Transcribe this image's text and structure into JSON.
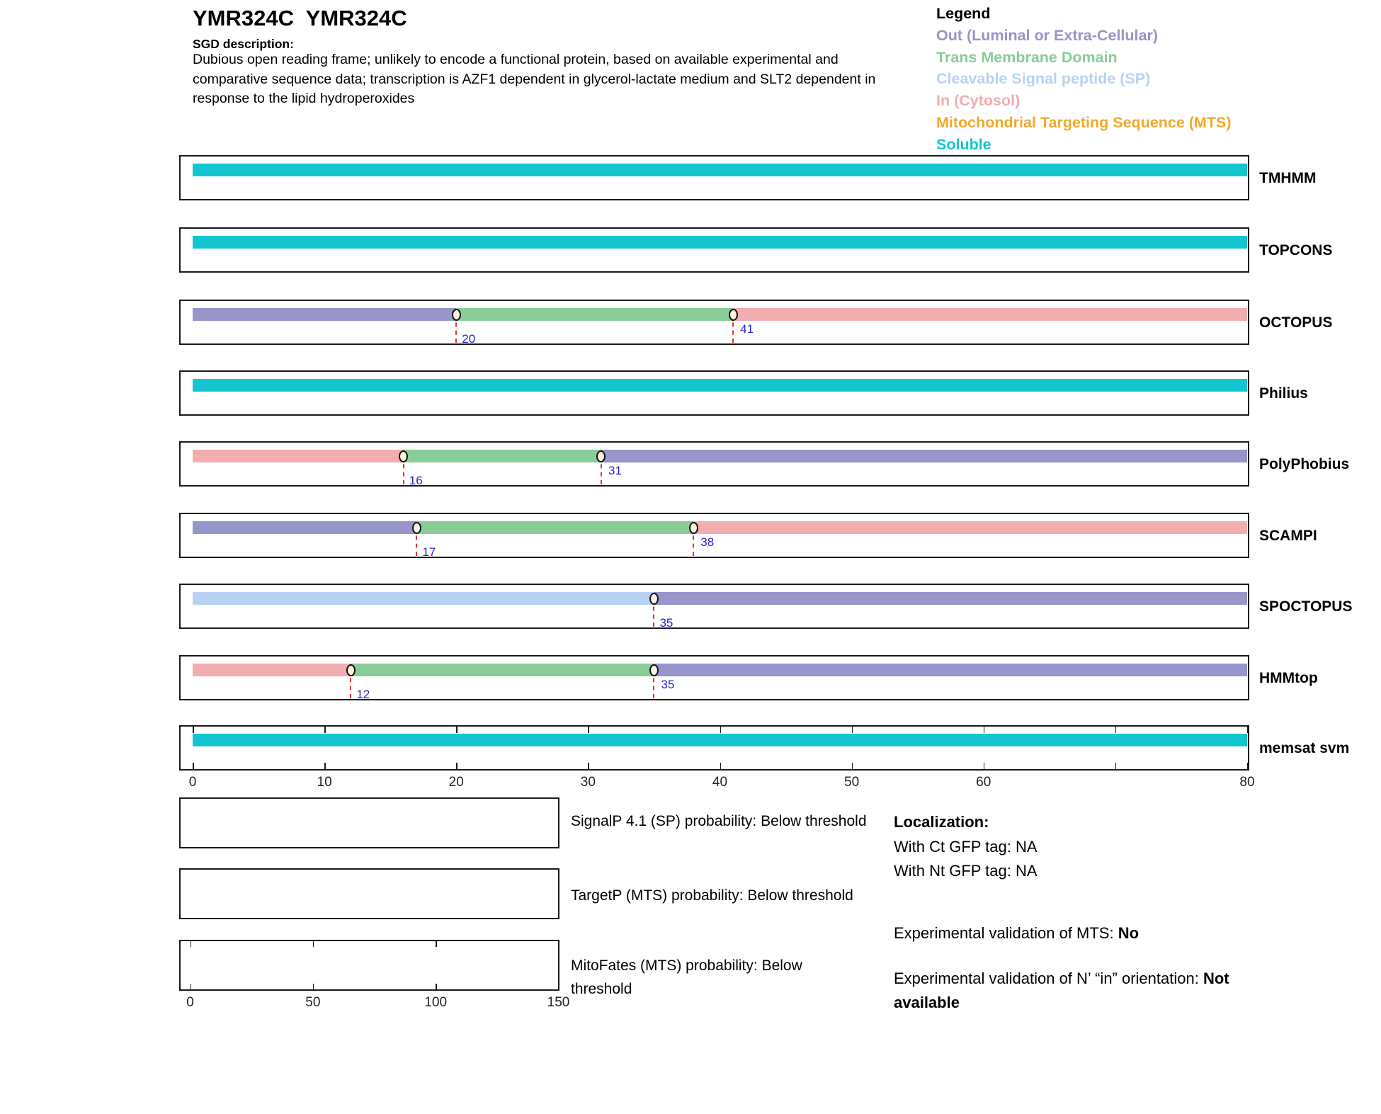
{
  "header": {
    "title": "YMR324C  YMR324C",
    "sgd_label": "SGD description:",
    "description": "Dubious open reading frame; unlikely to encode a functional protein, based on available experimental and comparative sequence data; transcription is AZF1 dependent in glycerol-lactate medium and SLT2 dependent in response to the lipid hydroperoxides"
  },
  "legend": {
    "title": "Legend",
    "items": [
      {
        "key": "out",
        "label": "Out (Luminal or Extra-Cellular)",
        "color": "#9795ca"
      },
      {
        "key": "tm",
        "label": "Trans Membrane Domain",
        "color": "#8acc97"
      },
      {
        "key": "sp",
        "label": "Cleavable Signal peptide (SP)",
        "color": "#b8d3f1"
      },
      {
        "key": "in",
        "label": "In (Cytosol)",
        "color": "#f1adb0"
      },
      {
        "key": "mts",
        "label": "Mitochondrial Targeting Sequence (MTS)",
        "color": "#f0a92c"
      },
      {
        "key": "soluble",
        "label": "Soluble",
        "color": "#12c5cf"
      }
    ]
  },
  "chart_data": {
    "type": "bar",
    "title": "Topology predictions per residue",
    "x_axis": {
      "range": [
        0,
        80
      ],
      "ticks": [
        0,
        10,
        20,
        30,
        40,
        50,
        60,
        70,
        80
      ],
      "labels": [
        {
          "v": 0,
          "text": "0"
        },
        {
          "v": 10,
          "text": "10"
        },
        {
          "v": 20,
          "text": "20"
        },
        {
          "v": 30,
          "text": "30"
        },
        {
          "v": 40,
          "text": "40"
        },
        {
          "v": 50,
          "text": "50"
        },
        {
          "v": 60,
          "text": "60"
        },
        {
          "v": 80,
          "text": "80"
        }
      ]
    },
    "tracks": [
      {
        "name": "TMHMM",
        "segments": [
          {
            "type": "soluble",
            "from": 0,
            "to": 80
          }
        ],
        "markers": [],
        "ticks": false
      },
      {
        "name": "TOPCONS",
        "segments": [
          {
            "type": "soluble",
            "from": 0,
            "to": 80
          }
        ],
        "markers": [],
        "ticks": false
      },
      {
        "name": "OCTOPUS",
        "segments": [
          {
            "type": "out",
            "from": 0,
            "to": 20
          },
          {
            "type": "tm",
            "from": 20,
            "to": 41
          },
          {
            "type": "in",
            "from": 41,
            "to": 80
          }
        ],
        "markers": [
          {
            "pos": 20,
            "level": "low"
          },
          {
            "pos": 41,
            "level": "high"
          }
        ],
        "ticks": false
      },
      {
        "name": "Philius",
        "segments": [
          {
            "type": "soluble",
            "from": 0,
            "to": 80
          }
        ],
        "markers": [],
        "ticks": false
      },
      {
        "name": "PolyPhobius",
        "segments": [
          {
            "type": "in",
            "from": 0,
            "to": 16
          },
          {
            "type": "tm",
            "from": 16,
            "to": 31
          },
          {
            "type": "out",
            "from": 31,
            "to": 80
          }
        ],
        "markers": [
          {
            "pos": 16,
            "level": "low"
          },
          {
            "pos": 31,
            "level": "high"
          }
        ],
        "ticks": false
      },
      {
        "name": "SCAMPI",
        "segments": [
          {
            "type": "out",
            "from": 0,
            "to": 17
          },
          {
            "type": "tm",
            "from": 17,
            "to": 38
          },
          {
            "type": "in",
            "from": 38,
            "to": 80
          }
        ],
        "markers": [
          {
            "pos": 17,
            "level": "low"
          },
          {
            "pos": 38,
            "level": "high"
          }
        ],
        "ticks": false
      },
      {
        "name": "SPOCTOPUS",
        "segments": [
          {
            "type": "sp",
            "from": 0,
            "to": 35
          },
          {
            "type": "out",
            "from": 35,
            "to": 80
          }
        ],
        "markers": [
          {
            "pos": 35,
            "level": "low"
          }
        ],
        "ticks": false
      },
      {
        "name": "HMMtop",
        "segments": [
          {
            "type": "in",
            "from": 0,
            "to": 12
          },
          {
            "type": "tm",
            "from": 12,
            "to": 35
          },
          {
            "type": "out",
            "from": 35,
            "to": 80
          }
        ],
        "markers": [
          {
            "pos": 12,
            "level": "low"
          },
          {
            "pos": 35,
            "level": "high"
          }
        ],
        "ticks": false
      },
      {
        "name": "memsat svm",
        "segments": [
          {
            "type": "soluble",
            "from": 0,
            "to": 80
          }
        ],
        "markers": [],
        "ticks": true
      }
    ],
    "mini_plots": [
      {
        "label": "SignalP 4.1 (SP) probability: Below threshold",
        "series": "empty"
      },
      {
        "label": "TargetP (MTS) probability: Below threshold",
        "series": "empty"
      },
      {
        "label": "MitoFates (MTS) probability: Below threshold",
        "series": "empty",
        "axis": {
          "range": [
            0,
            150
          ],
          "ticks": [
            0,
            50,
            100,
            150
          ],
          "labels": [
            {
              "v": 0,
              "text": "0"
            },
            {
              "v": 50,
              "text": "50"
            },
            {
              "v": 100,
              "text": "100"
            },
            {
              "v": 150,
              "text": "150"
            }
          ]
        }
      }
    ],
    "marker_color": "#2525cd",
    "dash_color": "#e8312a"
  },
  "info": {
    "localization_title": "Localization:",
    "ct_line": "With Ct GFP tag: NA",
    "nt_line": "With Nt GFP tag: NA",
    "mts_prefix": "Experimental validation of MTS: ",
    "mts_value": "No",
    "orientation_prefix": "Experimental validation of N’ “in” orientation: ",
    "orientation_value": "Not available"
  }
}
